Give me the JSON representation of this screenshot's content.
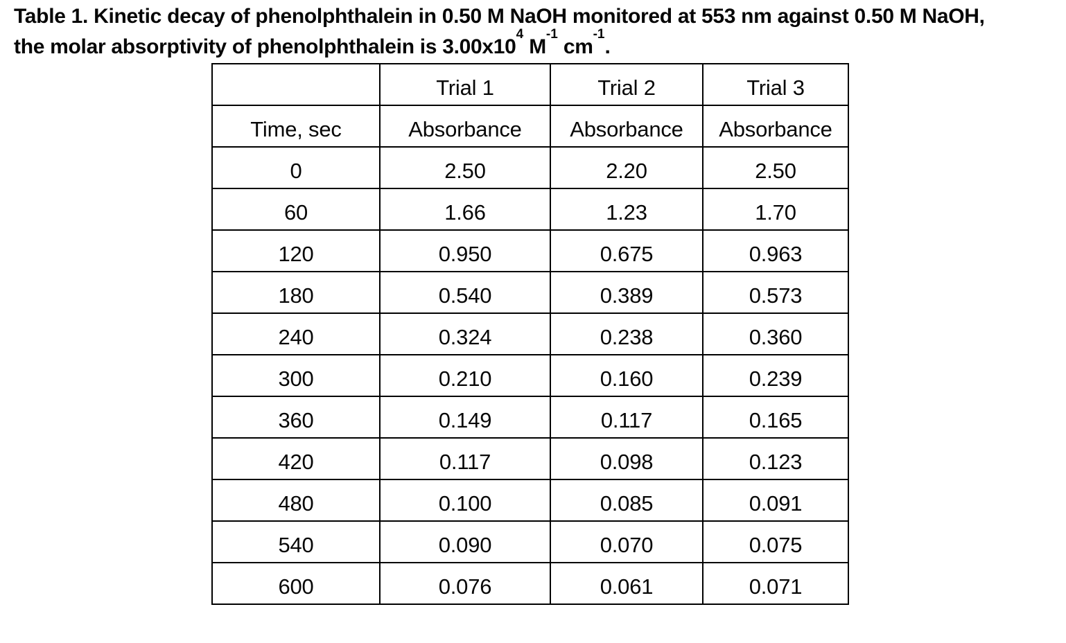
{
  "colors": {
    "background": "#ffffff",
    "text": "#070707",
    "table_border": "#000000"
  },
  "caption": {
    "line1": "Table 1. Kinetic decay of phenolphthalein in 0.50 M NaOH monitored at 553 nm against 0.50 M NaOH,",
    "line2": {
      "before_sup1": "the molar absorptivity of phenolphthalein is 3.00x10",
      "sup1": "4",
      "mid1": " M",
      "sup2": "-1",
      "mid2": " cm",
      "sup3": "-1",
      "end": "."
    }
  },
  "table": {
    "header_row1": [
      "",
      "Trial 1",
      "Trial 2",
      "Trial 3"
    ],
    "header_row2": [
      "Time, sec",
      "Absorbance",
      "Absorbance",
      "Absorbance"
    ],
    "rows": [
      [
        "0",
        "2.50",
        "2.20",
        "2.50"
      ],
      [
        "60",
        "1.66",
        "1.23",
        "1.70"
      ],
      [
        "120",
        "0.950",
        "0.675",
        "0.963"
      ],
      [
        "180",
        "0.540",
        "0.389",
        "0.573"
      ],
      [
        "240",
        "0.324",
        "0.238",
        "0.360"
      ],
      [
        "300",
        "0.210",
        "0.160",
        "0.239"
      ],
      [
        "360",
        "0.149",
        "0.117",
        "0.165"
      ],
      [
        "420",
        "0.117",
        "0.098",
        "0.123"
      ],
      [
        "480",
        "0.100",
        "0.085",
        "0.091"
      ],
      [
        "540",
        "0.090",
        "0.070",
        "0.075"
      ],
      [
        "600",
        "0.076",
        "0.061",
        "0.071"
      ]
    ]
  }
}
